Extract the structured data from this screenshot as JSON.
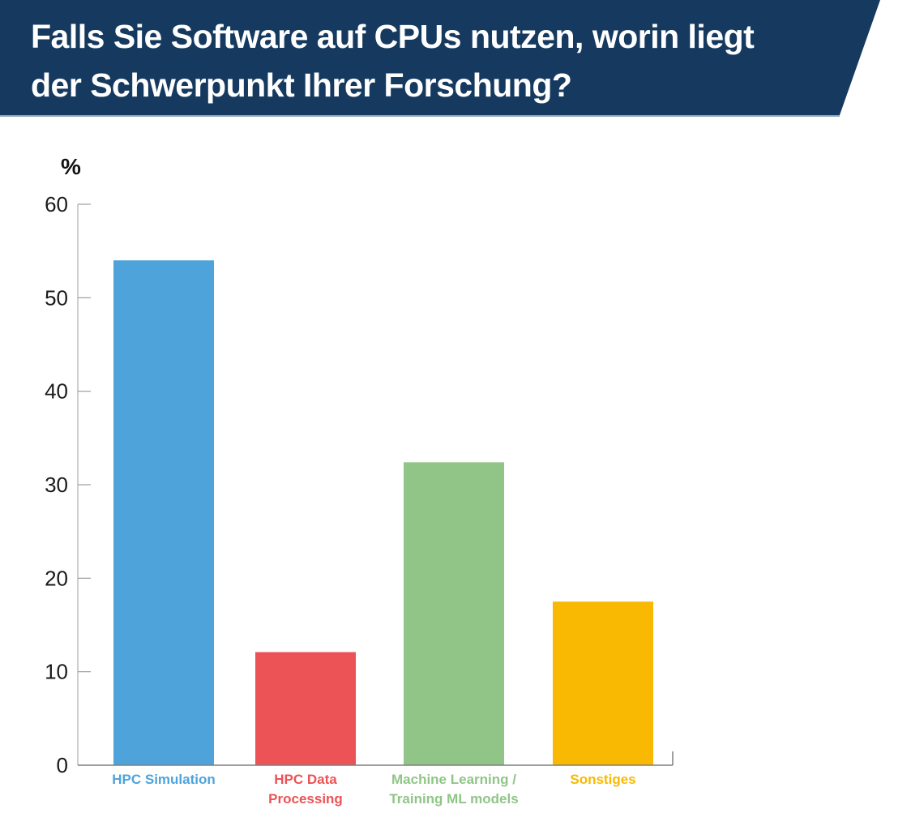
{
  "header": {
    "title_lines": [
      "Falls Sie Software auf CPUs nutzen, worin liegt",
      "der Schwerpunkt Ihrer Forschung?"
    ],
    "background_color": "#163A5F",
    "text_color": "#FFFFFF"
  },
  "chart_data": {
    "type": "bar",
    "title": "Falls Sie Software auf CPUs nutzen, worin liegt der Schwerpunkt Ihrer Forschung?",
    "xlabel": "",
    "ylabel": "%",
    "ylim": [
      0,
      60
    ],
    "yticks": [
      0,
      10,
      20,
      30,
      40,
      50,
      60
    ],
    "grid": false,
    "legend": "none",
    "categories": [
      "HPC Simulation",
      "HPC Data Processing",
      "Machine Learning / Training ML models",
      "Sonstiges"
    ],
    "category_label_lines": [
      [
        "HPC Simulation"
      ],
      [
        "HPC Data",
        "Processing"
      ],
      [
        "Machine Learning /",
        "Training ML models"
      ],
      [
        "Sonstiges"
      ]
    ],
    "values": [
      54.0,
      12.1,
      32.4,
      17.5
    ],
    "colors": [
      "#4FA3DB",
      "#EB5356",
      "#90C587",
      "#F9B903"
    ]
  }
}
